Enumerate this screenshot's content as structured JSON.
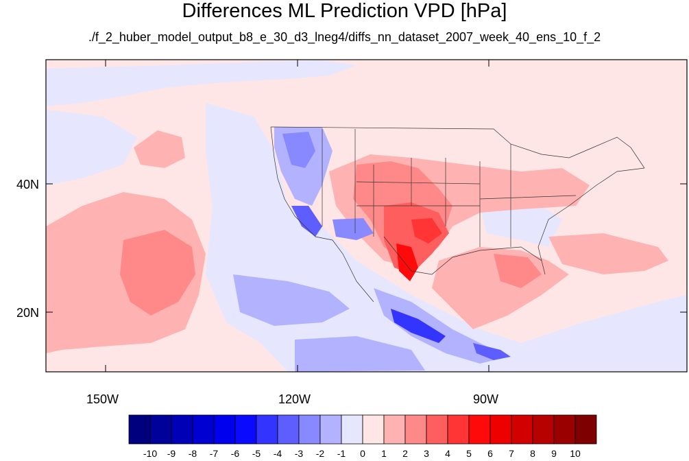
{
  "title": "Differences ML Prediction VPD [hPa]",
  "subtitle": "./f_2_huber_model_output_b8_e_30_d3_lneg4/diffs_nn_dataset_2007_week_40_ens_10_f_2",
  "axes": {
    "lon_labels": [
      "150W",
      "120W",
      "90W"
    ],
    "lat_labels": [
      "40N",
      "20N"
    ]
  },
  "colorbar": {
    "labels": [
      "-10",
      "-9",
      "-8",
      "-7",
      "-6",
      "-5",
      "-4",
      "-3",
      "-2",
      "-1",
      "0",
      "1",
      "2",
      "3",
      "4",
      "5",
      "6",
      "7",
      "8",
      "9",
      "10"
    ],
    "colors": [
      "#00007f",
      "#00009b",
      "#0000b7",
      "#0000d3",
      "#0000ef",
      "#0a0aff",
      "#3434ff",
      "#5e5eff",
      "#8888ff",
      "#b2b2ff",
      "#e6e6ff",
      "#ffe6e6",
      "#ffb2b2",
      "#ff8888",
      "#ff5e5e",
      "#ff3434",
      "#ff0a0a",
      "#ef0000",
      "#d30000",
      "#b70000",
      "#9b0000",
      "#7f0000"
    ]
  }
}
